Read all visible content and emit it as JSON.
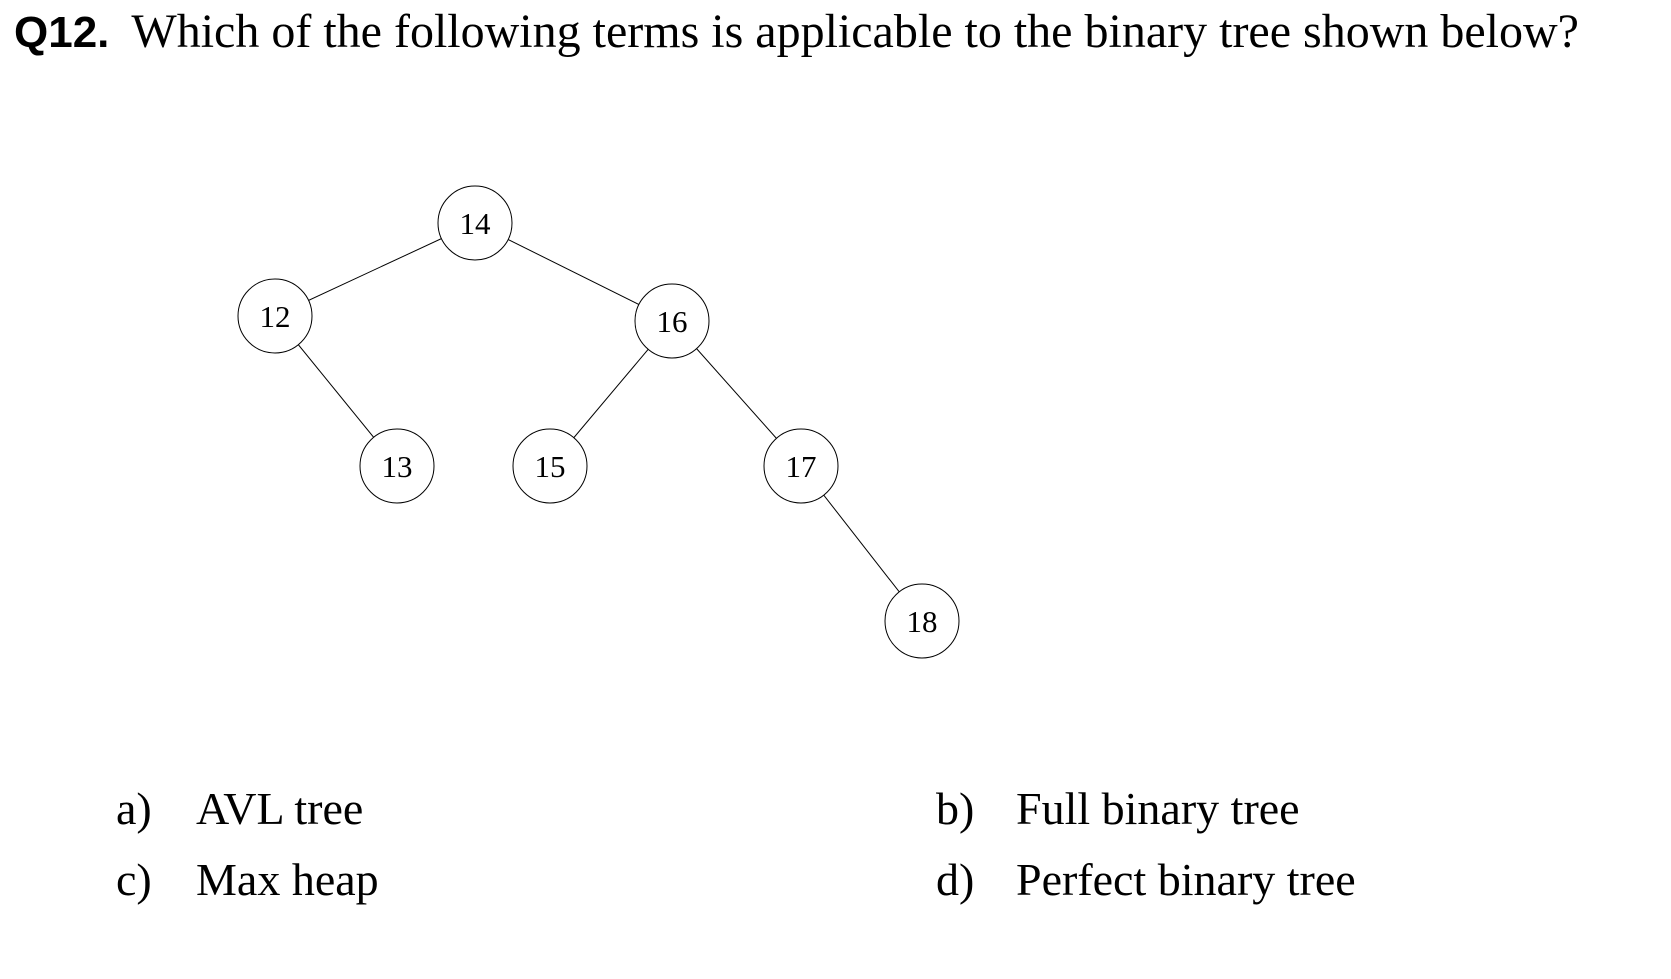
{
  "question": {
    "number": "Q12.",
    "text": "Which of the following terms is applicable to the binary tree shown below?"
  },
  "tree": {
    "nodes": [
      {
        "id": "n14",
        "value": "14"
      },
      {
        "id": "n12",
        "value": "12"
      },
      {
        "id": "n16",
        "value": "16"
      },
      {
        "id": "n13",
        "value": "13"
      },
      {
        "id": "n15",
        "value": "15"
      },
      {
        "id": "n17",
        "value": "17"
      },
      {
        "id": "n18",
        "value": "18"
      }
    ],
    "edges": [
      {
        "from": "14",
        "to": "12"
      },
      {
        "from": "14",
        "to": "16"
      },
      {
        "from": "12",
        "to": "13"
      },
      {
        "from": "16",
        "to": "15"
      },
      {
        "from": "16",
        "to": "17"
      },
      {
        "from": "17",
        "to": "18"
      }
    ]
  },
  "options": [
    {
      "letter": "a)",
      "text": "AVL tree"
    },
    {
      "letter": "b)",
      "text": "Full binary tree"
    },
    {
      "letter": "c)",
      "text": "Max heap"
    },
    {
      "letter": "d)",
      "text": "Perfect binary tree"
    }
  ]
}
